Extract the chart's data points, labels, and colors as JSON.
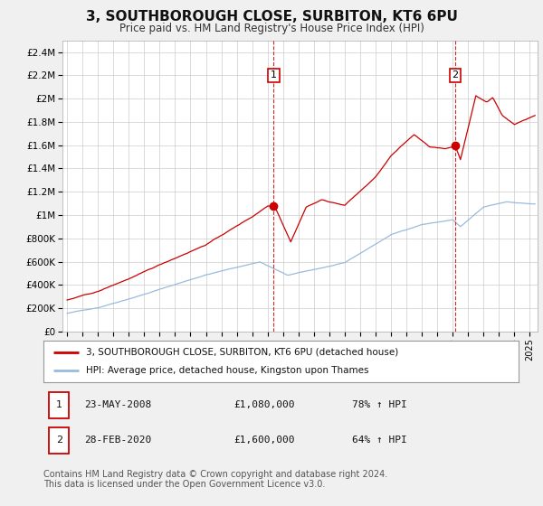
{
  "title": "3, SOUTHBOROUGH CLOSE, SURBITON, KT6 6PU",
  "subtitle": "Price paid vs. HM Land Registry's House Price Index (HPI)",
  "title_fontsize": 11,
  "subtitle_fontsize": 8.5,
  "bg_color": "#f0f0f0",
  "plot_bg_color": "#ffffff",
  "red_line_color": "#cc0000",
  "blue_line_color": "#99bbdd",
  "grid_color": "#cccccc",
  "ylabel_ticks": [
    "£0",
    "£200K",
    "£400K",
    "£600K",
    "£800K",
    "£1M",
    "£1.2M",
    "£1.4M",
    "£1.6M",
    "£1.8M",
    "£2M",
    "£2.2M",
    "£2.4M"
  ],
  "ylim": [
    0,
    2500000
  ],
  "ytick_vals": [
    0,
    200000,
    400000,
    600000,
    800000,
    1000000,
    1200000,
    1400000,
    1600000,
    1800000,
    2000000,
    2200000,
    2400000
  ],
  "xlim_start": 1994.7,
  "xlim_end": 2025.5,
  "sale1_x": 2008.39,
  "sale1_y": 1080000,
  "sale2_x": 2020.17,
  "sale2_y": 1600000,
  "vline1_x": 2008.39,
  "vline2_x": 2020.17,
  "legend_label_red": "3, SOUTHBOROUGH CLOSE, SURBITON, KT6 6PU (detached house)",
  "legend_label_blue": "HPI: Average price, detached house, Kingston upon Thames",
  "table_row1": [
    "1",
    "23-MAY-2008",
    "£1,080,000",
    "78% ↑ HPI"
  ],
  "table_row2": [
    "2",
    "28-FEB-2020",
    "£1,600,000",
    "64% ↑ HPI"
  ],
  "footer": "Contains HM Land Registry data © Crown copyright and database right 2024.\nThis data is licensed under the Open Government Licence v3.0.",
  "footer_fontsize": 7
}
